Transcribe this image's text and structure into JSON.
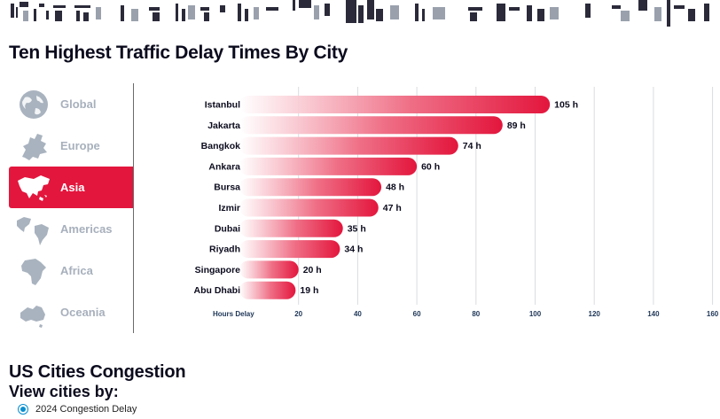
{
  "page": {
    "title": "Ten Highest Traffic Delay Times By City"
  },
  "nav": {
    "items": [
      {
        "label": "Global",
        "icon": "globe-icon",
        "active": false
      },
      {
        "label": "Europe",
        "icon": "europe-map-icon",
        "active": false
      },
      {
        "label": "Asia",
        "icon": "asia-map-icon",
        "active": true
      },
      {
        "label": "Americas",
        "icon": "americas-map-icon",
        "active": false
      },
      {
        "label": "Africa",
        "icon": "africa-map-icon",
        "active": false
      },
      {
        "label": "Oceania",
        "icon": "oceania-map-icon",
        "active": false
      }
    ]
  },
  "colors": {
    "accent": "#e3163d",
    "inactive_label": "#a7b0bc",
    "icon": "#a9b3bf",
    "grid": "#d9dce0",
    "radio": "#0a8fd0"
  },
  "chart_data": {
    "type": "bar",
    "orientation": "horizontal",
    "categories": [
      "Istanbul",
      "Jakarta",
      "Bangkok",
      "Ankara",
      "Bursa",
      "Izmir",
      "Dubai",
      "Riyadh",
      "Singapore",
      "Abu Dhabi"
    ],
    "values": [
      105,
      89,
      74,
      60,
      48,
      47,
      35,
      34,
      20,
      19
    ],
    "value_labels": [
      "105 h",
      "89 h",
      "74 h",
      "60 h",
      "48 h",
      "47 h",
      "35 h",
      "34 h",
      "20 h",
      "19 h"
    ],
    "xlabel": "Hours Delay",
    "xticks": [
      20,
      40,
      60,
      80,
      100,
      120,
      140,
      160
    ],
    "xlim": [
      0,
      160
    ],
    "grid": true,
    "bar_color": "#e3163d"
  },
  "us_section": {
    "title": "US Cities Congestion",
    "view_by": "View cities by:",
    "option_label": "2024 Congestion Delay"
  }
}
